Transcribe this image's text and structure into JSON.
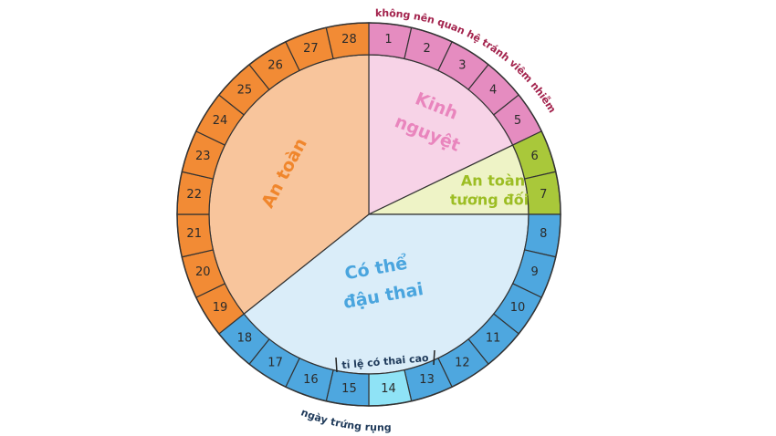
{
  "days": [
    1,
    2,
    3,
    4,
    5,
    6,
    7,
    8,
    9,
    10,
    11,
    12,
    13,
    14,
    15,
    16,
    17,
    18,
    19,
    20,
    21,
    22,
    23,
    24,
    25,
    26,
    27,
    28
  ],
  "phases": {
    "menstruation": [
      "Kinh",
      "nguyệt"
    ],
    "relatively_safe": [
      "An toàn",
      "tương đối"
    ],
    "fertile": [
      "Có thể",
      "đậu thai"
    ],
    "safe": [
      "An toàn"
    ]
  },
  "notes": {
    "top": "không nên quan hệ tránh viêm nhiễm",
    "high_chance": "tỉ lệ có thai cao",
    "ovulation": "ngày trứng rụng"
  }
}
